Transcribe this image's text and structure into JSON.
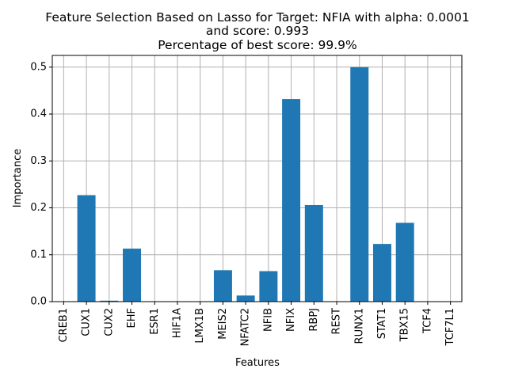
{
  "chart_data": {
    "type": "bar",
    "title_lines": [
      "Feature Selection Based on Lasso for Target: NFIA with alpha: 0.0001",
      "and score: 0.993",
      "Percentage of best score: 99.9%"
    ],
    "xlabel": "Features",
    "ylabel": "Importance",
    "categories": [
      "CREB1",
      "CUX1",
      "CUX2",
      "EHF",
      "ESR1",
      "HIF1A",
      "LMX1B",
      "MEIS2",
      "NFATC2",
      "NFIB",
      "NFIX",
      "RBPJ",
      "REST",
      "RUNX1",
      "STAT1",
      "TBX15",
      "TCF4",
      "TCF7L1"
    ],
    "values": [
      0.0,
      0.227,
      0.002,
      0.113,
      0.0,
      0.0,
      0.0,
      0.067,
      0.013,
      0.065,
      0.432,
      0.206,
      0.0,
      0.5,
      0.123,
      0.168,
      0.0,
      0.0
    ],
    "yticks": [
      "0.0",
      "0.1",
      "0.2",
      "0.3",
      "0.4",
      "0.5"
    ],
    "ylim": [
      0,
      0.525
    ],
    "grid": true,
    "bar_color": "#1f77b4"
  }
}
